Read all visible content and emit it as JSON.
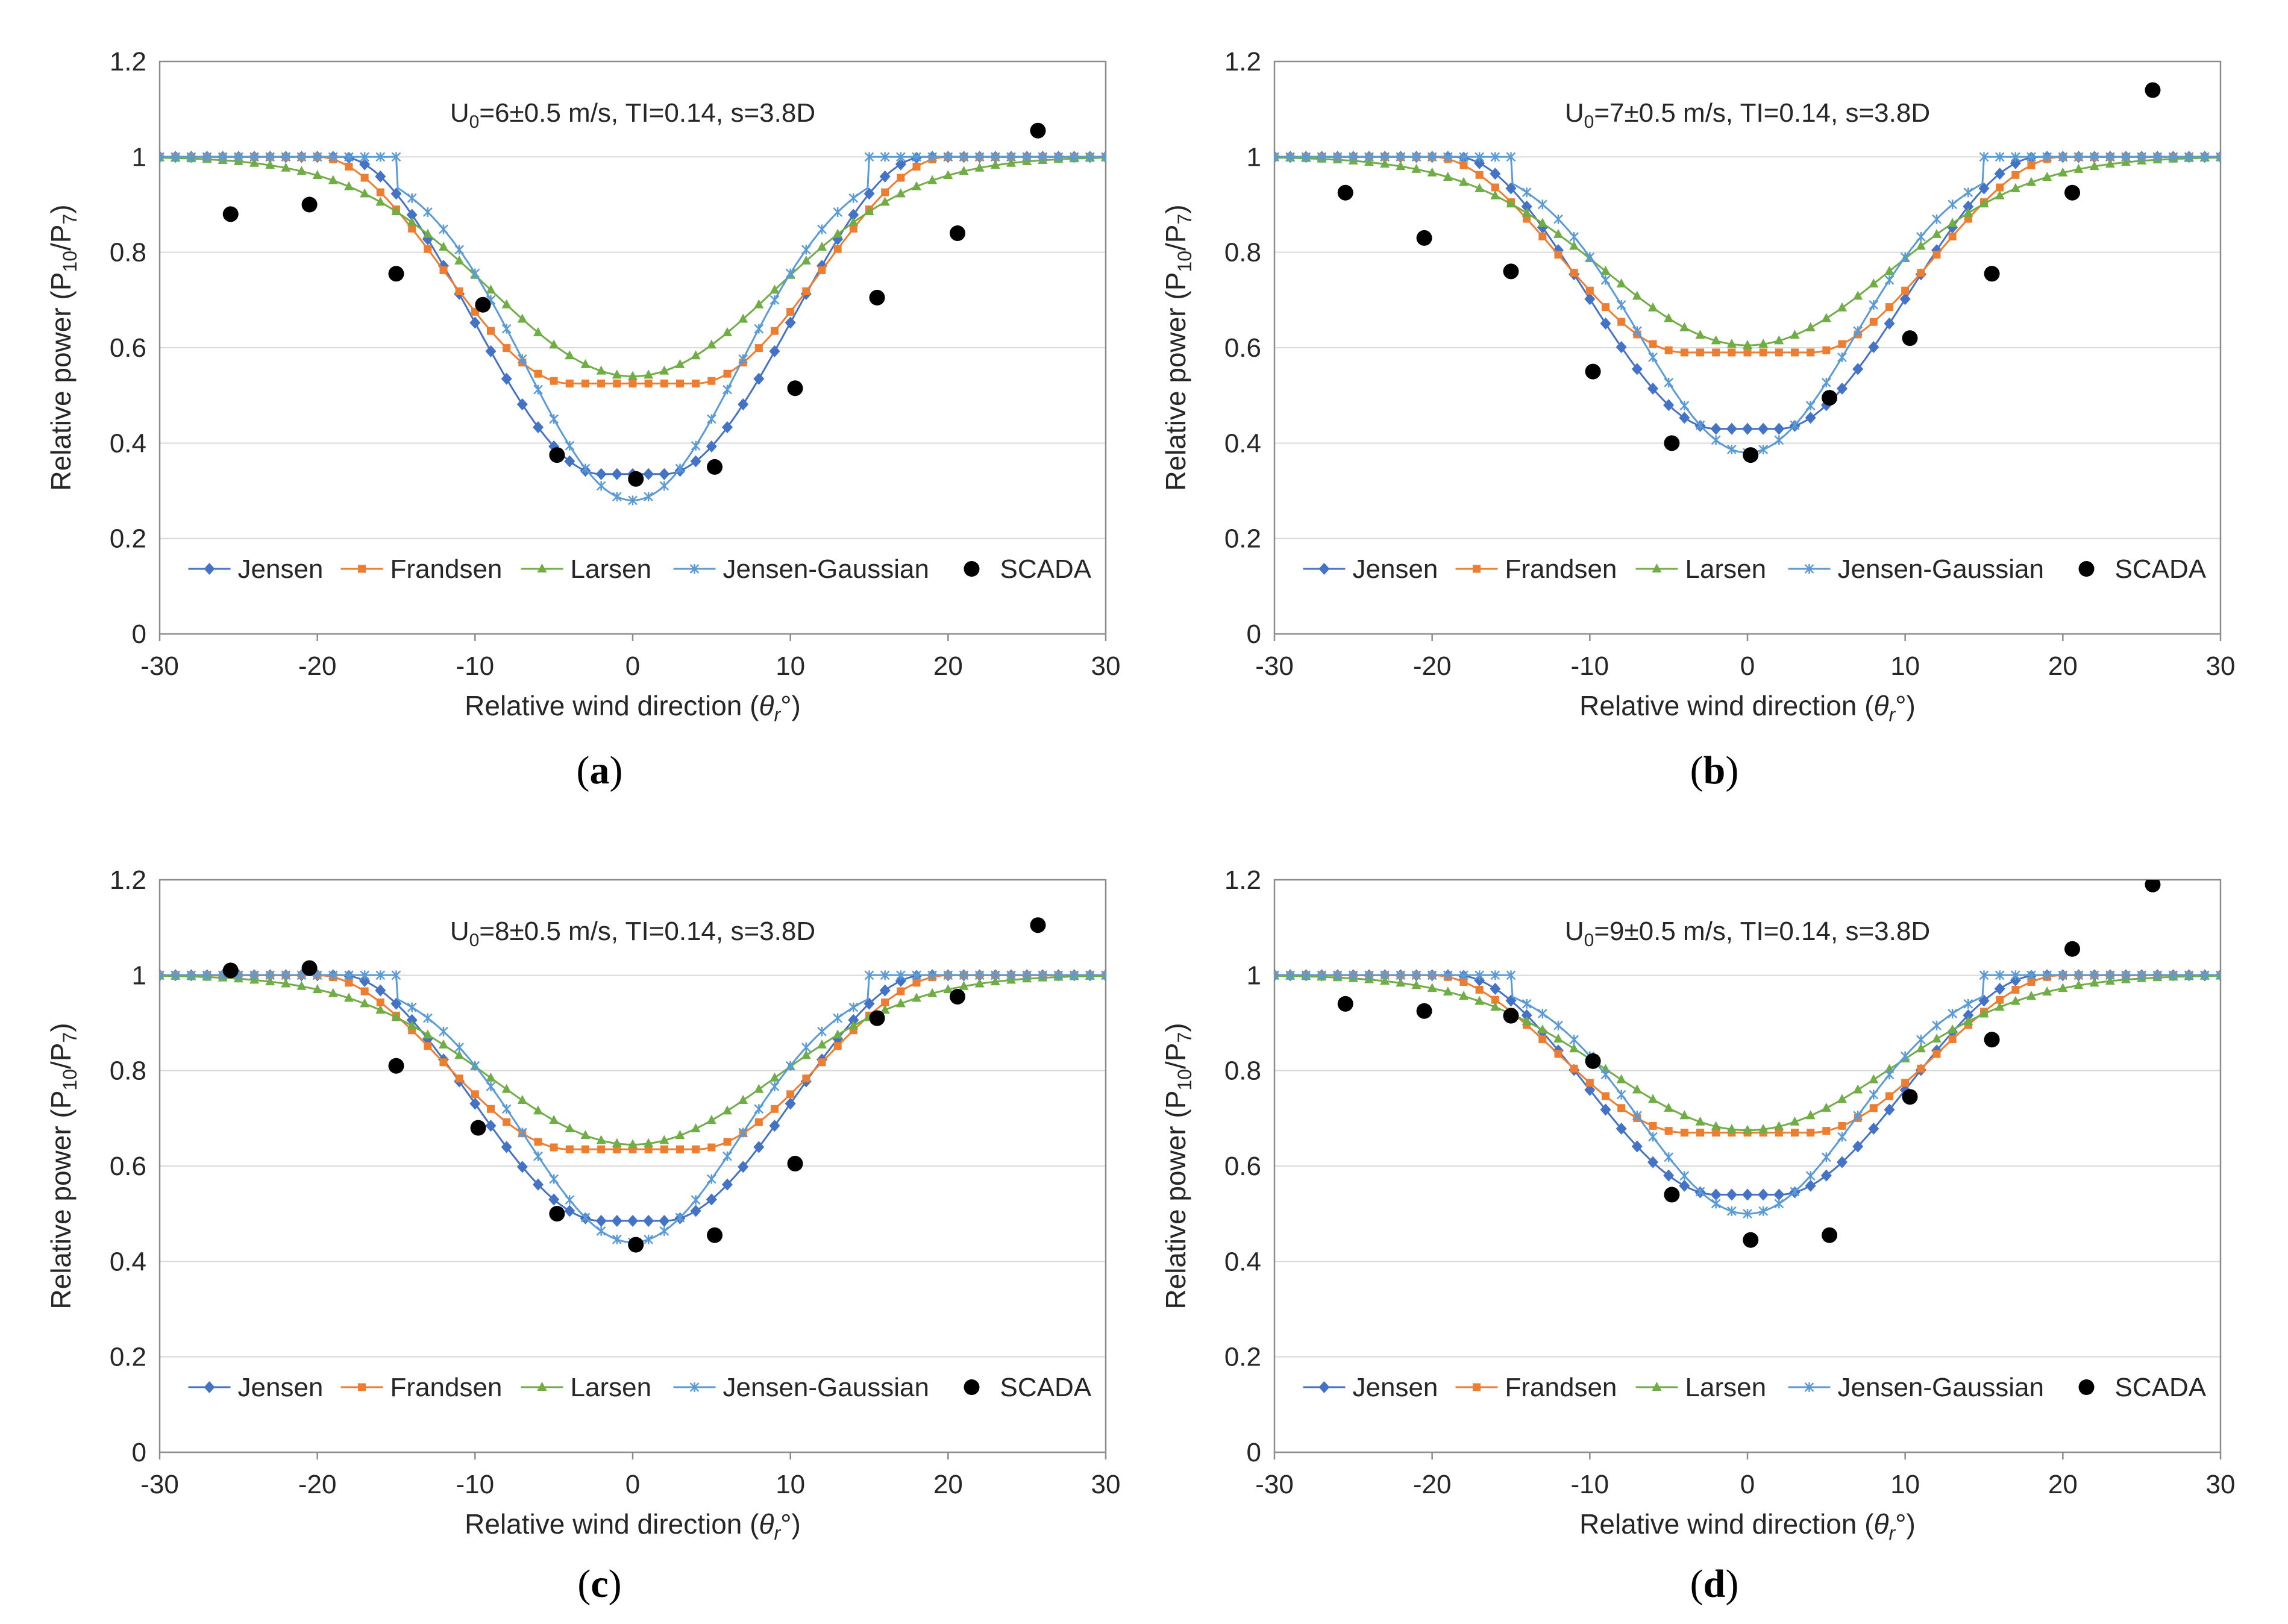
{
  "chart_data": [
    {
      "type": "line",
      "panel_label": "a",
      "title": {
        "u": "U",
        "sub": "0",
        "rest": "=6±0.5 m/s, TI=0.14, s=3.8D"
      },
      "xlabel": "Relative wind direction (θr°)",
      "ylabel": "Relative power (P10/P7)",
      "xlim": [
        -30,
        30
      ],
      "ylim": [
        0,
        1.2
      ],
      "xticks": [
        "-30",
        "-20",
        "-10",
        "0",
        "10",
        "20",
        "30"
      ],
      "yticks": [
        "0",
        "0.2",
        "0.4",
        "0.6",
        "0.8",
        "1",
        "1.2"
      ],
      "grid": "horizontal",
      "legend_position": "bottom",
      "series": [
        {
          "name": "Jensen",
          "model": "jensen",
          "min": 0.335,
          "flat_halfwidth": 2.0,
          "full_halfwidth": 18.5
        },
        {
          "name": "Frandsen",
          "model": "plateau",
          "min": 0.525,
          "flat_halfwidth": 4.0,
          "full_halfwidth": 20.0
        },
        {
          "name": "Larsen",
          "model": "gauss",
          "min": 0.54,
          "sigma": 9.0
        },
        {
          "name": "Jensen-Gaussian",
          "model": "gauss_flat",
          "min": 0.28,
          "sigma": 6.8,
          "flat_halfwidth": 15.0
        },
        {
          "name": "SCADA",
          "scatter": true,
          "x": [
            -25.5,
            -20.5,
            -15.0,
            -9.5,
            -4.8,
            0.2,
            5.2,
            10.3,
            15.5,
            20.6,
            25.7
          ],
          "y": [
            0.88,
            0.9,
            0.755,
            0.69,
            0.375,
            0.325,
            0.35,
            0.515,
            0.705,
            0.84,
            1.055
          ]
        }
      ]
    },
    {
      "type": "line",
      "panel_label": "b",
      "title": {
        "u": "U",
        "sub": "0",
        "rest": "=7±0.5 m/s, TI=0.14, s=3.8D"
      },
      "xlabel": "Relative wind direction (θr°)",
      "ylabel": "Relative power (P10/P7)",
      "xlim": [
        -30,
        30
      ],
      "ylim": [
        0,
        1.2
      ],
      "xticks": [
        "-30",
        "-20",
        "-10",
        "0",
        "10",
        "20",
        "30"
      ],
      "yticks": [
        "0",
        "0.2",
        "0.4",
        "0.6",
        "0.8",
        "1",
        "1.2"
      ],
      "grid": "horizontal",
      "legend_position": "bottom",
      "series": [
        {
          "name": "Jensen",
          "model": "jensen",
          "min": 0.43,
          "flat_halfwidth": 2.0,
          "full_halfwidth": 18.5
        },
        {
          "name": "Frandsen",
          "model": "plateau",
          "min": 0.59,
          "flat_halfwidth": 4.0,
          "full_halfwidth": 20.0
        },
        {
          "name": "Larsen",
          "model": "gauss",
          "min": 0.605,
          "sigma": 9.0
        },
        {
          "name": "Jensen-Gaussian",
          "model": "gauss_flat",
          "min": 0.38,
          "sigma": 6.8,
          "flat_halfwidth": 15.0
        },
        {
          "name": "SCADA",
          "scatter": true,
          "x": [
            -25.5,
            -20.5,
            -15.0,
            -9.8,
            -4.8,
            0.2,
            5.2,
            10.3,
            15.5,
            20.6,
            25.7
          ],
          "y": [
            0.925,
            0.83,
            0.76,
            0.55,
            0.4,
            0.375,
            0.495,
            0.62,
            0.755,
            0.925,
            1.14
          ]
        }
      ]
    },
    {
      "type": "line",
      "panel_label": "c",
      "title": {
        "u": "U",
        "sub": "0",
        "rest": "=8±0.5 m/s, TI=0.14, s=3.8D"
      },
      "xlabel": "Relative wind direction (θr°)",
      "ylabel": "Relative power (P10/P7)",
      "xlim": [
        -30,
        30
      ],
      "ylim": [
        0,
        1.2
      ],
      "xticks": [
        "-30",
        "-20",
        "-10",
        "0",
        "10",
        "20",
        "30"
      ],
      "yticks": [
        "0",
        "0.2",
        "0.4",
        "0.6",
        "0.8",
        "1",
        "1.2"
      ],
      "grid": "horizontal",
      "legend_position": "bottom",
      "series": [
        {
          "name": "Jensen",
          "model": "jensen",
          "min": 0.485,
          "flat_halfwidth": 2.0,
          "full_halfwidth": 18.5
        },
        {
          "name": "Frandsen",
          "model": "plateau",
          "min": 0.635,
          "flat_halfwidth": 4.0,
          "full_halfwidth": 20.0
        },
        {
          "name": "Larsen",
          "model": "gauss",
          "min": 0.645,
          "sigma": 9.0
        },
        {
          "name": "Jensen-Gaussian",
          "model": "gauss_flat",
          "min": 0.44,
          "sigma": 6.8,
          "flat_halfwidth": 15.0
        },
        {
          "name": "SCADA",
          "scatter": true,
          "x": [
            -25.5,
            -20.5,
            -15.0,
            -9.8,
            -4.8,
            0.2,
            5.2,
            10.3,
            15.5,
            20.6,
            25.7
          ],
          "y": [
            1.01,
            1.015,
            0.81,
            0.68,
            0.5,
            0.435,
            0.455,
            0.605,
            0.91,
            0.955,
            1.105
          ]
        }
      ]
    },
    {
      "type": "line",
      "panel_label": "d",
      "title": {
        "u": "U",
        "sub": "0",
        "rest": "=9±0.5 m/s, TI=0.14, s=3.8D"
      },
      "xlabel": "Relative wind direction (θr°)",
      "ylabel": "Relative power (P10/P7)",
      "xlim": [
        -30,
        30
      ],
      "ylim": [
        0,
        1.2
      ],
      "xticks": [
        "-30",
        "-20",
        "-10",
        "0",
        "10",
        "20",
        "30"
      ],
      "yticks": [
        "0",
        "0.2",
        "0.4",
        "0.6",
        "0.8",
        "1",
        "1.2"
      ],
      "grid": "horizontal",
      "legend_position": "bottom",
      "series": [
        {
          "name": "Jensen",
          "model": "jensen",
          "min": 0.54,
          "flat_halfwidth": 2.0,
          "full_halfwidth": 18.5
        },
        {
          "name": "Frandsen",
          "model": "plateau",
          "min": 0.67,
          "flat_halfwidth": 4.0,
          "full_halfwidth": 20.0
        },
        {
          "name": "Larsen",
          "model": "gauss",
          "min": 0.675,
          "sigma": 9.0
        },
        {
          "name": "Jensen-Gaussian",
          "model": "gauss_flat",
          "min": 0.5,
          "sigma": 6.8,
          "flat_halfwidth": 15.0
        },
        {
          "name": "SCADA",
          "scatter": true,
          "x": [
            -25.5,
            -20.5,
            -15.0,
            -9.8,
            -4.8,
            0.2,
            5.2,
            10.3,
            15.5,
            20.6,
            25.7
          ],
          "y": [
            0.94,
            0.925,
            0.915,
            0.82,
            0.54,
            0.445,
            0.455,
            0.745,
            0.865,
            1.055,
            1.19
          ]
        }
      ]
    }
  ],
  "style": {
    "colors": {
      "Jensen": "#4472C4",
      "Frandsen": "#ED7D31",
      "Larsen": "#70AD47",
      "Jensen-Gaussian": "#5B9BD5",
      "SCADA": "#000000"
    },
    "markers": {
      "Jensen": "diamond",
      "Frandsen": "square",
      "Larsen": "triangle",
      "Jensen-Gaussian": "asterisk",
      "SCADA": "circle"
    },
    "grid_color": "#d9d9d9",
    "frame_color": "#8c8c8c"
  }
}
